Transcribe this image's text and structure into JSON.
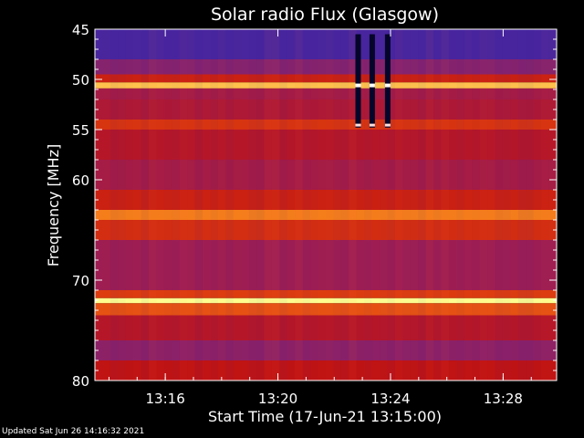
{
  "chart_data": {
    "type": "heatmap",
    "title": "Solar radio Flux (Glasgow)",
    "xlabel": "Start Time (17-Jun-21 13:15:00)",
    "ylabel": "Frequency [MHz]",
    "xlim_minutes": [
      13.5,
      29.9
    ],
    "ylim": [
      45,
      80
    ],
    "y_reversed": true,
    "x_ticks": [
      {
        "minutes": 16,
        "label": "13:16"
      },
      {
        "minutes": 20,
        "label": "13:20"
      },
      {
        "minutes": 24,
        "label": "13:24"
      },
      {
        "minutes": 28,
        "label": "13:28"
      }
    ],
    "y_ticks": [
      {
        "value": 45,
        "label": "45"
      },
      {
        "value": 50,
        "label": "50"
      },
      {
        "value": 55,
        "label": "55"
      },
      {
        "value": 60,
        "label": "60"
      },
      {
        "value": 70,
        "label": "70"
      },
      {
        "value": 80,
        "label": "80"
      }
    ],
    "frequency_bands": [
      {
        "from": 45.0,
        "to": 48.0,
        "level": 0.12
      },
      {
        "from": 48.0,
        "to": 49.5,
        "level": 0.28
      },
      {
        "from": 49.5,
        "to": 50.3,
        "level": 0.55
      },
      {
        "from": 50.3,
        "to": 50.9,
        "level": 0.9
      },
      {
        "from": 50.9,
        "to": 52.0,
        "level": 0.38
      },
      {
        "from": 52.0,
        "to": 54.0,
        "level": 0.42
      },
      {
        "from": 54.0,
        "to": 55.0,
        "level": 0.62
      },
      {
        "from": 55.0,
        "to": 58.0,
        "level": 0.45
      },
      {
        "from": 58.0,
        "to": 61.0,
        "level": 0.38
      },
      {
        "from": 61.0,
        "to": 63.0,
        "level": 0.55
      },
      {
        "from": 63.0,
        "to": 64.0,
        "level": 0.78
      },
      {
        "from": 64.0,
        "to": 66.0,
        "level": 0.6
      },
      {
        "from": 66.0,
        "to": 71.0,
        "level": 0.35
      },
      {
        "from": 71.0,
        "to": 71.8,
        "level": 0.65
      },
      {
        "from": 71.8,
        "to": 72.3,
        "level": 1.0
      },
      {
        "from": 72.3,
        "to": 73.5,
        "level": 0.7
      },
      {
        "from": 73.5,
        "to": 76.0,
        "level": 0.45
      },
      {
        "from": 76.0,
        "to": 78.0,
        "level": 0.3
      },
      {
        "from": 78.0,
        "to": 80.0,
        "level": 0.5
      }
    ],
    "colormap": [
      "#1a1aa8",
      "#5b2a9a",
      "#9a1f5a",
      "#c01414",
      "#e04010",
      "#ff9a20",
      "#ffff90"
    ],
    "features": [
      {
        "kind": "vertical-stripe",
        "minutes": 22.85,
        "from": 45.5,
        "to": 54.8
      },
      {
        "kind": "vertical-stripe",
        "minutes": 23.35,
        "from": 45.5,
        "to": 54.8
      },
      {
        "kind": "vertical-stripe",
        "minutes": 23.9,
        "from": 45.5,
        "to": 54.8
      }
    ],
    "footer": "Updated Sat Jun 26 14:16:32 2021"
  }
}
